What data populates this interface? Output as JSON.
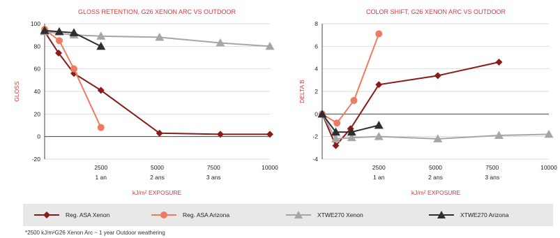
{
  "chart_data": [
    {
      "type": "line",
      "title": "GLOSS RETENTION, G26 XENON ARC VS OUTDOOR",
      "ylabel": "GLOSS",
      "xlabel": "kJ/m² EXPOSURE",
      "xlim": [
        0,
        10000
      ],
      "ylim": [
        -20,
        100
      ],
      "yticks": [
        -20,
        0,
        20,
        40,
        60,
        80,
        100
      ],
      "xticks": [
        {
          "value": 2500,
          "label": "2500",
          "sublabel": "1 an"
        },
        {
          "value": 5000,
          "label": "5000",
          "sublabel": "2 ans"
        },
        {
          "value": 7500,
          "label": "7500",
          "sublabel": "3 ans"
        },
        {
          "value": 10000,
          "label": "10000",
          "sublabel": ""
        }
      ],
      "series": [
        {
          "name": "Reg. ASA Xenon",
          "color": "#8b1a1a",
          "marker": "diamond",
          "points": [
            [
              0,
              93
            ],
            [
              620,
              74
            ],
            [
              1300,
              56
            ],
            [
              2500,
              41
            ],
            [
              5100,
              3
            ],
            [
              7800,
              2
            ],
            [
              10000,
              2
            ]
          ]
        },
        {
          "name": "Reg. ASA Arizona",
          "color": "#ee7a62",
          "marker": "circle",
          "points": [
            [
              0,
              95
            ],
            [
              650,
              85
            ],
            [
              1300,
              60
            ],
            [
              2500,
              8
            ]
          ]
        },
        {
          "name": "XTWE270 Xenon",
          "color": "#a6a6a6",
          "marker": "triangle",
          "points": [
            [
              0,
              93
            ],
            [
              1300,
              90
            ],
            [
              2500,
              89
            ],
            [
              5100,
              88
            ],
            [
              7800,
              83
            ],
            [
              10000,
              80
            ]
          ]
        },
        {
          "name": "XTWE270 Arizona",
          "color": "#2e2e2e",
          "marker": "triangle",
          "points": [
            [
              0,
              94
            ],
            [
              650,
              93
            ],
            [
              1300,
              92
            ],
            [
              2500,
              80
            ]
          ]
        }
      ]
    },
    {
      "type": "line",
      "title": "COLOR SHIFT, G26 XENON ARC VS OUTDOOR",
      "ylabel": "DELTA B",
      "xlabel": "kJ/m² EXPOSURE",
      "xlim": [
        0,
        10000
      ],
      "ylim": [
        -4,
        8
      ],
      "yticks": [
        -4,
        -2,
        0,
        2,
        4,
        6,
        8
      ],
      "xticks": [
        {
          "value": 2500,
          "label": "2500",
          "sublabel": "1 an"
        },
        {
          "value": 5000,
          "label": "5000",
          "sublabel": "2 ans"
        },
        {
          "value": 7500,
          "label": "7500",
          "sublabel": "3 ans"
        },
        {
          "value": 10000,
          "label": "10000",
          "sublabel": ""
        }
      ],
      "series": [
        {
          "name": "Reg. ASA Xenon",
          "color": "#8b1a1a",
          "marker": "diamond",
          "points": [
            [
              0,
              0
            ],
            [
              600,
              -2.8
            ],
            [
              1250,
              -1.3
            ],
            [
              2500,
              2.6
            ],
            [
              5100,
              3.4
            ],
            [
              7800,
              4.6
            ]
          ]
        },
        {
          "name": "Reg. ASA Arizona",
          "color": "#ee7a62",
          "marker": "circle",
          "points": [
            [
              0,
              0
            ],
            [
              650,
              -0.8
            ],
            [
              1400,
              1.2
            ],
            [
              2500,
              7.1
            ]
          ]
        },
        {
          "name": "XTWE270 Xenon",
          "color": "#a6a6a6",
          "marker": "triangle",
          "points": [
            [
              0,
              0
            ],
            [
              600,
              -2.2
            ],
            [
              1300,
              -2.1
            ],
            [
              2500,
              -2.0
            ],
            [
              5100,
              -2.2
            ],
            [
              7800,
              -1.9
            ],
            [
              10000,
              -1.8
            ]
          ]
        },
        {
          "name": "XTWE270 Arizona",
          "color": "#2e2e2e",
          "marker": "triangle",
          "points": [
            [
              0,
              0
            ],
            [
              600,
              -1.6
            ],
            [
              1300,
              -1.6
            ],
            [
              2500,
              -1.0
            ]
          ]
        }
      ]
    }
  ],
  "legend": [
    {
      "label": "Reg. ASA Xenon",
      "color": "#8b1a1a",
      "marker": "diamond"
    },
    {
      "label": "Reg. ASA Arizona",
      "color": "#ee7a62",
      "marker": "circle"
    },
    {
      "label": "XTWE270 Xenon",
      "color": "#a6a6a6",
      "marker": "triangle"
    },
    {
      "label": "XTWE270 Arizona",
      "color": "#2e2e2e",
      "marker": "triangle"
    }
  ],
  "footnote": "*2500 kJ/m²G26 Xenon Arc ~ 1 year Outdoor weathering",
  "colors": {
    "title": "#d9393f",
    "axis": "#444444",
    "grid": "#cccccc",
    "legend_bg": "#e8e8e8"
  }
}
